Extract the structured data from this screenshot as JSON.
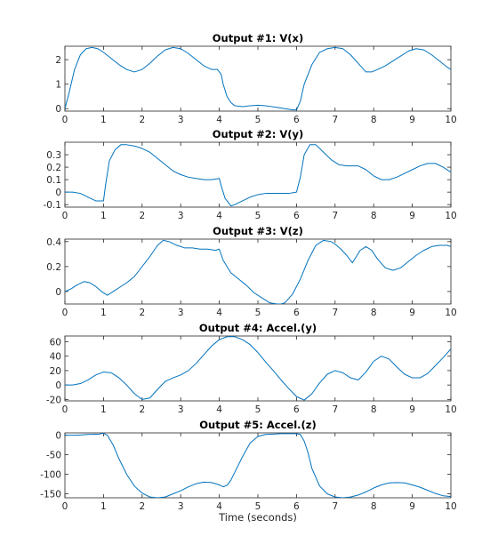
{
  "figure": {
    "background": "#ffffff",
    "axes_color": "#262626",
    "line_color": "#0072bd"
  },
  "chart_data": [
    {
      "type": "line",
      "title": "Output #1: V(x)",
      "xlabel": "",
      "ylabel": "",
      "xlim": [
        0,
        10
      ],
      "ylim": [
        -0.1,
        2.55
      ],
      "xticks": [
        0,
        1,
        2,
        3,
        4,
        5,
        6,
        7,
        8,
        9,
        10
      ],
      "yticks": [
        0,
        1,
        2
      ],
      "grid": false,
      "series": [
        {
          "x": [
            0,
            0.1,
            0.25,
            0.4,
            0.55,
            0.7,
            0.85,
            1.0,
            1.2,
            1.4,
            1.6,
            1.8,
            2.0,
            2.2,
            2.4,
            2.6,
            2.8,
            3.0,
            3.2,
            3.4,
            3.6,
            3.8,
            3.95,
            4.05,
            4.1,
            4.2,
            4.3,
            4.4,
            4.6,
            4.8,
            5.0,
            5.2,
            5.5,
            5.7,
            5.9,
            6.0,
            6.1,
            6.2,
            6.4,
            6.6,
            6.8,
            7.0,
            7.2,
            7.4,
            7.6,
            7.8,
            7.95,
            8.1,
            8.3,
            8.5,
            8.7,
            8.9,
            9.1,
            9.3,
            9.5,
            9.7,
            9.9,
            10.0
          ],
          "values": [
            0,
            0.6,
            1.6,
            2.2,
            2.45,
            2.5,
            2.45,
            2.3,
            2.05,
            1.8,
            1.6,
            1.5,
            1.6,
            1.85,
            2.15,
            2.4,
            2.5,
            2.45,
            2.25,
            2.0,
            1.75,
            1.6,
            1.6,
            1.4,
            1.0,
            0.5,
            0.25,
            0.12,
            0.08,
            0.12,
            0.14,
            0.12,
            0.05,
            0.0,
            -0.05,
            -0.05,
            0.3,
            1.0,
            1.8,
            2.3,
            2.45,
            2.5,
            2.45,
            2.2,
            1.85,
            1.5,
            1.5,
            1.6,
            1.75,
            1.95,
            2.15,
            2.35,
            2.45,
            2.4,
            2.2,
            1.95,
            1.7,
            1.6
          ]
        }
      ]
    },
    {
      "type": "line",
      "title": "Output #2: V(y)",
      "xlabel": "",
      "ylabel": "",
      "xlim": [
        0,
        10
      ],
      "ylim": [
        -0.12,
        0.4
      ],
      "xticks": [
        0,
        1,
        2,
        3,
        4,
        5,
        6,
        7,
        8,
        9,
        10
      ],
      "yticks": [
        -0.1,
        0,
        0.1,
        0.2,
        0.3
      ],
      "ytick_labels": [
        "-0.1",
        "0",
        "0.1",
        "0.2",
        "0.3"
      ],
      "grid": false,
      "series": [
        {
          "x": [
            0,
            0.2,
            0.4,
            0.6,
            0.8,
            1.0,
            1.05,
            1.15,
            1.3,
            1.45,
            1.6,
            1.8,
            2.0,
            2.2,
            2.4,
            2.6,
            2.8,
            3.0,
            3.2,
            3.4,
            3.6,
            3.8,
            4.0,
            4.05,
            4.15,
            4.3,
            4.4,
            4.6,
            4.8,
            5.0,
            5.2,
            5.4,
            5.6,
            5.8,
            6.0,
            6.1,
            6.2,
            6.35,
            6.5,
            6.7,
            6.9,
            7.1,
            7.3,
            7.6,
            7.8,
            8.0,
            8.2,
            8.4,
            8.6,
            8.8,
            9.0,
            9.2,
            9.4,
            9.6,
            9.8,
            10.0
          ],
          "values": [
            0,
            0,
            -0.01,
            -0.04,
            -0.07,
            -0.07,
            0.05,
            0.25,
            0.34,
            0.38,
            0.38,
            0.37,
            0.35,
            0.32,
            0.27,
            0.22,
            0.17,
            0.14,
            0.12,
            0.11,
            0.1,
            0.1,
            0.11,
            0.05,
            -0.05,
            -0.11,
            -0.1,
            -0.07,
            -0.04,
            -0.02,
            -0.01,
            -0.01,
            -0.01,
            -0.01,
            0.0,
            0.12,
            0.3,
            0.38,
            0.38,
            0.32,
            0.26,
            0.22,
            0.21,
            0.21,
            0.18,
            0.13,
            0.1,
            0.1,
            0.12,
            0.15,
            0.18,
            0.21,
            0.23,
            0.23,
            0.2,
            0.16
          ]
        }
      ]
    },
    {
      "type": "line",
      "title": "Output #3: V(z)",
      "xlabel": "",
      "ylabel": "",
      "xlim": [
        0,
        10
      ],
      "ylim": [
        -0.1,
        0.42
      ],
      "xticks": [
        0,
        1,
        2,
        3,
        4,
        5,
        6,
        7,
        8,
        9,
        10
      ],
      "yticks": [
        0,
        0.2,
        0.4
      ],
      "ytick_labels": [
        "0",
        "0.2",
        "0.4"
      ],
      "grid": false,
      "series": [
        {
          "x": [
            0,
            0.15,
            0.3,
            0.5,
            0.65,
            0.8,
            0.95,
            1.1,
            1.2,
            1.4,
            1.6,
            1.8,
            2.0,
            2.2,
            2.4,
            2.55,
            2.7,
            2.9,
            3.1,
            3.3,
            3.5,
            3.7,
            3.9,
            4.0,
            4.1,
            4.3,
            4.5,
            4.7,
            4.9,
            5.1,
            5.3,
            5.5,
            5.6,
            5.7,
            5.9,
            6.1,
            6.3,
            6.5,
            6.7,
            6.9,
            7.0,
            7.15,
            7.3,
            7.45,
            7.55,
            7.65,
            7.8,
            7.95,
            8.1,
            8.3,
            8.5,
            8.7,
            8.9,
            9.1,
            9.3,
            9.5,
            9.7,
            9.9,
            10.0
          ],
          "values": [
            0.0,
            0.02,
            0.05,
            0.08,
            0.07,
            0.04,
            0.0,
            -0.03,
            -0.01,
            0.03,
            0.07,
            0.12,
            0.2,
            0.28,
            0.37,
            0.41,
            0.4,
            0.37,
            0.35,
            0.35,
            0.34,
            0.34,
            0.33,
            0.34,
            0.25,
            0.15,
            0.1,
            0.05,
            -0.01,
            -0.05,
            -0.09,
            -0.1,
            -0.1,
            -0.09,
            -0.02,
            0.1,
            0.25,
            0.37,
            0.41,
            0.4,
            0.38,
            0.34,
            0.29,
            0.23,
            0.28,
            0.33,
            0.36,
            0.33,
            0.26,
            0.19,
            0.17,
            0.19,
            0.24,
            0.29,
            0.33,
            0.36,
            0.37,
            0.37,
            0.36
          ]
        }
      ]
    },
    {
      "type": "line",
      "title": "Output #4: Accel.(y)",
      "xlabel": "",
      "ylabel": "",
      "xlim": [
        0,
        10
      ],
      "ylim": [
        -22,
        68
      ],
      "xticks": [
        0,
        1,
        2,
        3,
        4,
        5,
        6,
        7,
        8,
        9,
        10
      ],
      "yticks": [
        -20,
        0,
        20,
        40,
        60
      ],
      "grid": false,
      "series": [
        {
          "x": [
            0,
            0.2,
            0.4,
            0.6,
            0.8,
            1.0,
            1.2,
            1.4,
            1.6,
            1.8,
            2.0,
            2.2,
            2.4,
            2.6,
            2.8,
            3.0,
            3.2,
            3.4,
            3.6,
            3.8,
            4.0,
            4.2,
            4.4,
            4.6,
            4.8,
            5.0,
            5.2,
            5.4,
            5.6,
            5.8,
            6.0,
            6.2,
            6.4,
            6.6,
            6.8,
            7.0,
            7.2,
            7.4,
            7.6,
            7.8,
            8.0,
            8.2,
            8.4,
            8.6,
            8.8,
            9.0,
            9.2,
            9.4,
            9.6,
            9.8,
            10.0
          ],
          "values": [
            0,
            0,
            2,
            7,
            14,
            18,
            17,
            10,
            0,
            -12,
            -20,
            -18,
            -6,
            5,
            10,
            14,
            20,
            30,
            42,
            54,
            63,
            67,
            67,
            63,
            56,
            45,
            32,
            20,
            7,
            -5,
            -16,
            -21,
            -12,
            3,
            15,
            20,
            17,
            10,
            7,
            18,
            33,
            40,
            36,
            25,
            15,
            10,
            10,
            16,
            27,
            38,
            50
          ]
        }
      ]
    },
    {
      "type": "line",
      "title": "Output #5: Accel.(z)",
      "xlabel": "Time (seconds)",
      "ylabel": "",
      "xlim": [
        0,
        10
      ],
      "ylim": [
        -160,
        6
      ],
      "xticks": [
        0,
        1,
        2,
        3,
        4,
        5,
        6,
        7,
        8,
        9,
        10
      ],
      "yticks": [
        -150,
        -100,
        -50,
        0
      ],
      "grid": false,
      "series": [
        {
          "x": [
            0,
            0.3,
            0.6,
            0.9,
            1.0,
            1.1,
            1.25,
            1.4,
            1.6,
            1.8,
            2.0,
            2.2,
            2.4,
            2.6,
            2.8,
            3.0,
            3.2,
            3.4,
            3.6,
            3.8,
            4.0,
            4.1,
            4.2,
            4.3,
            4.4,
            4.6,
            4.8,
            5.0,
            5.2,
            5.4,
            5.6,
            5.8,
            6.0,
            6.1,
            6.2,
            6.3,
            6.4,
            6.6,
            6.8,
            7.0,
            7.2,
            7.4,
            7.6,
            7.8,
            8.0,
            8.2,
            8.4,
            8.6,
            8.8,
            9.0,
            9.2,
            9.4,
            9.6,
            9.8,
            10.0
          ],
          "values": [
            0,
            0,
            2,
            3,
            5,
            0,
            -25,
            -60,
            -100,
            -130,
            -148,
            -158,
            -160,
            -158,
            -150,
            -142,
            -132,
            -124,
            -120,
            -121,
            -127,
            -132,
            -128,
            -115,
            -95,
            -55,
            -20,
            -3,
            2,
            3,
            4,
            4,
            4,
            2,
            -15,
            -45,
            -85,
            -130,
            -150,
            -158,
            -160,
            -158,
            -153,
            -145,
            -135,
            -127,
            -122,
            -121,
            -122,
            -127,
            -133,
            -141,
            -149,
            -155,
            -157
          ]
        }
      ]
    }
  ]
}
